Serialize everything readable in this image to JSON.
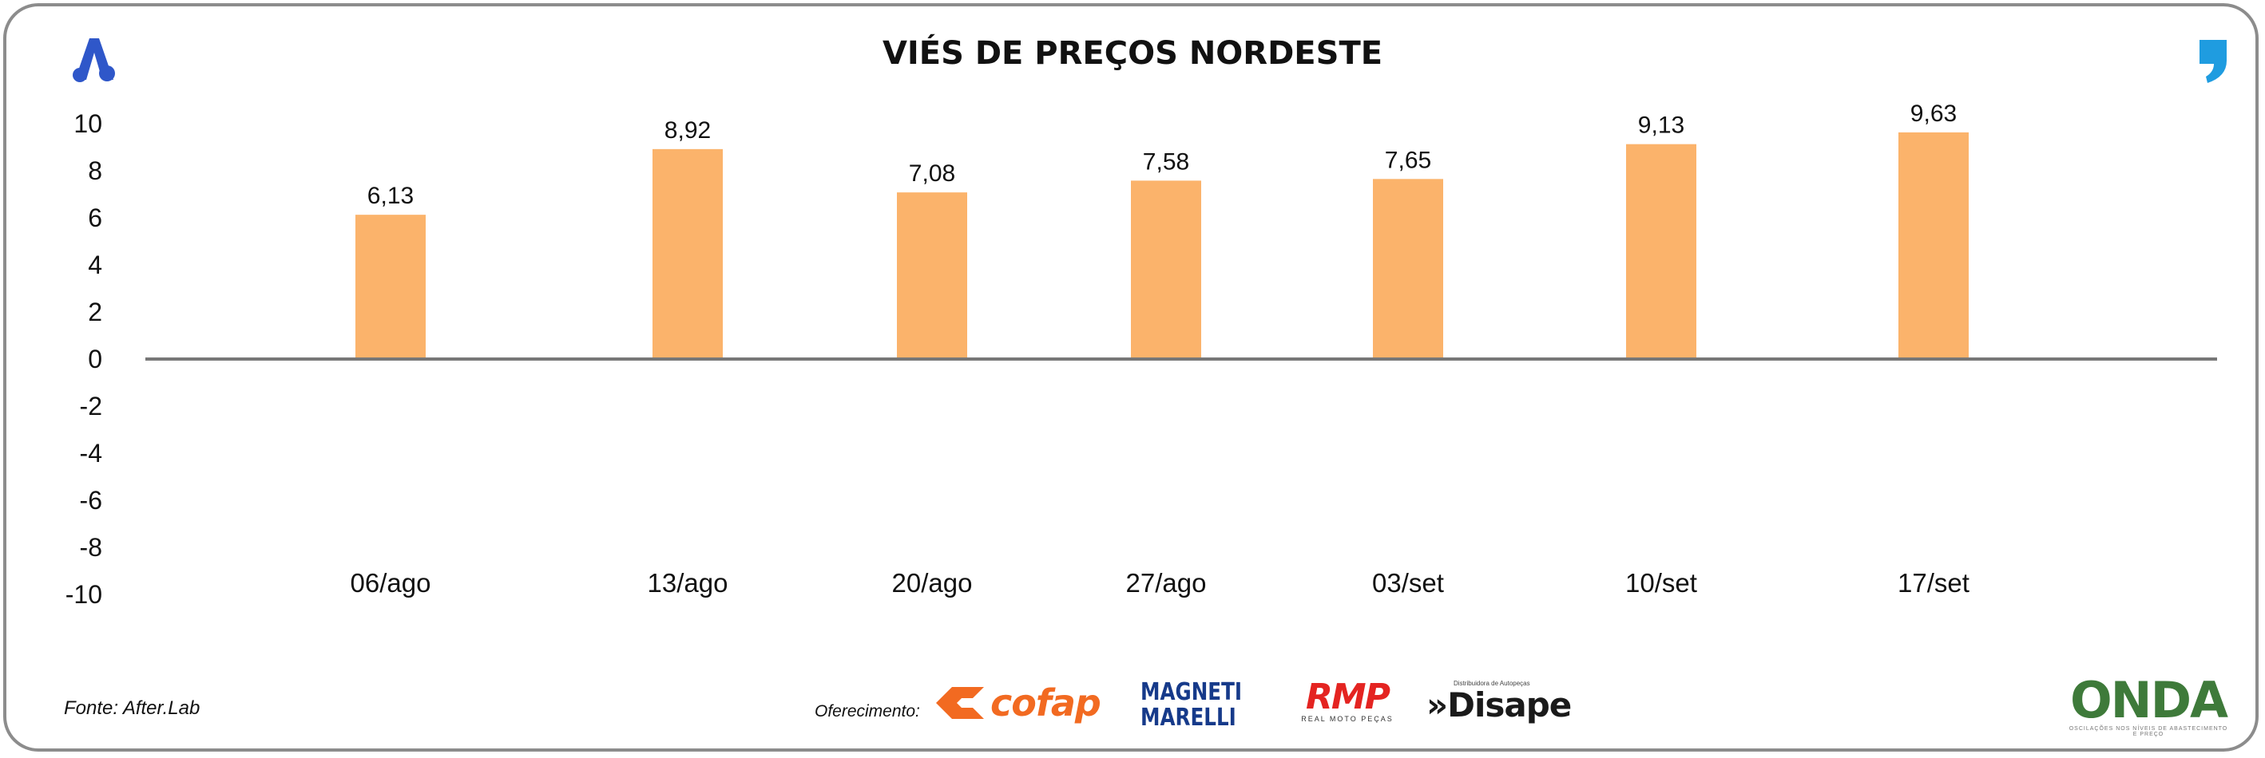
{
  "chart_data": {
    "type": "bar",
    "title": "VIÉS DE PREÇOS NORDESTE",
    "categories": [
      "06/ago",
      "13/ago",
      "20/ago",
      "27/ago",
      "03/set",
      "10/set",
      "17/set"
    ],
    "values": [
      6.13,
      8.92,
      7.08,
      7.58,
      7.65,
      9.13,
      9.63
    ],
    "value_labels": [
      "6,13",
      "8,92",
      "7,08",
      "7,58",
      "7,65",
      "9,13",
      "9,63"
    ],
    "ylim": [
      -10,
      10
    ],
    "yticks": [
      10,
      8,
      6,
      4,
      2,
      0,
      -2,
      -4,
      -6,
      -8,
      -10
    ],
    "xlabel": "",
    "ylabel": "",
    "grid": false,
    "bar_color": "#fbb36b"
  },
  "footer": {
    "source": "Fonte: After.Lab",
    "offer_label": "Oferecimento:",
    "sponsors": {
      "cofap": "cofap",
      "magneti_line1": "MAGNETI",
      "magneti_line2": "MARELLI",
      "rmp": "RMP",
      "rmp_sub": "REAL MOTO PEÇAS",
      "disape_sub": "Distribuidora de Autopeças",
      "disape": "»Disape",
      "onda": "ONDA",
      "onda_sub": "OSCILAÇÕES NOS NÍVEIS DE ABASTECIMENTO E PREÇO"
    }
  },
  "colors": {
    "brand_blue": "#2f57c9",
    "quote_blue": "#1f9ce0",
    "axis": "#777777",
    "text": "#111111"
  },
  "icons": {
    "top_left": "brand-a-icon",
    "top_right": "quote-mark-icon"
  }
}
